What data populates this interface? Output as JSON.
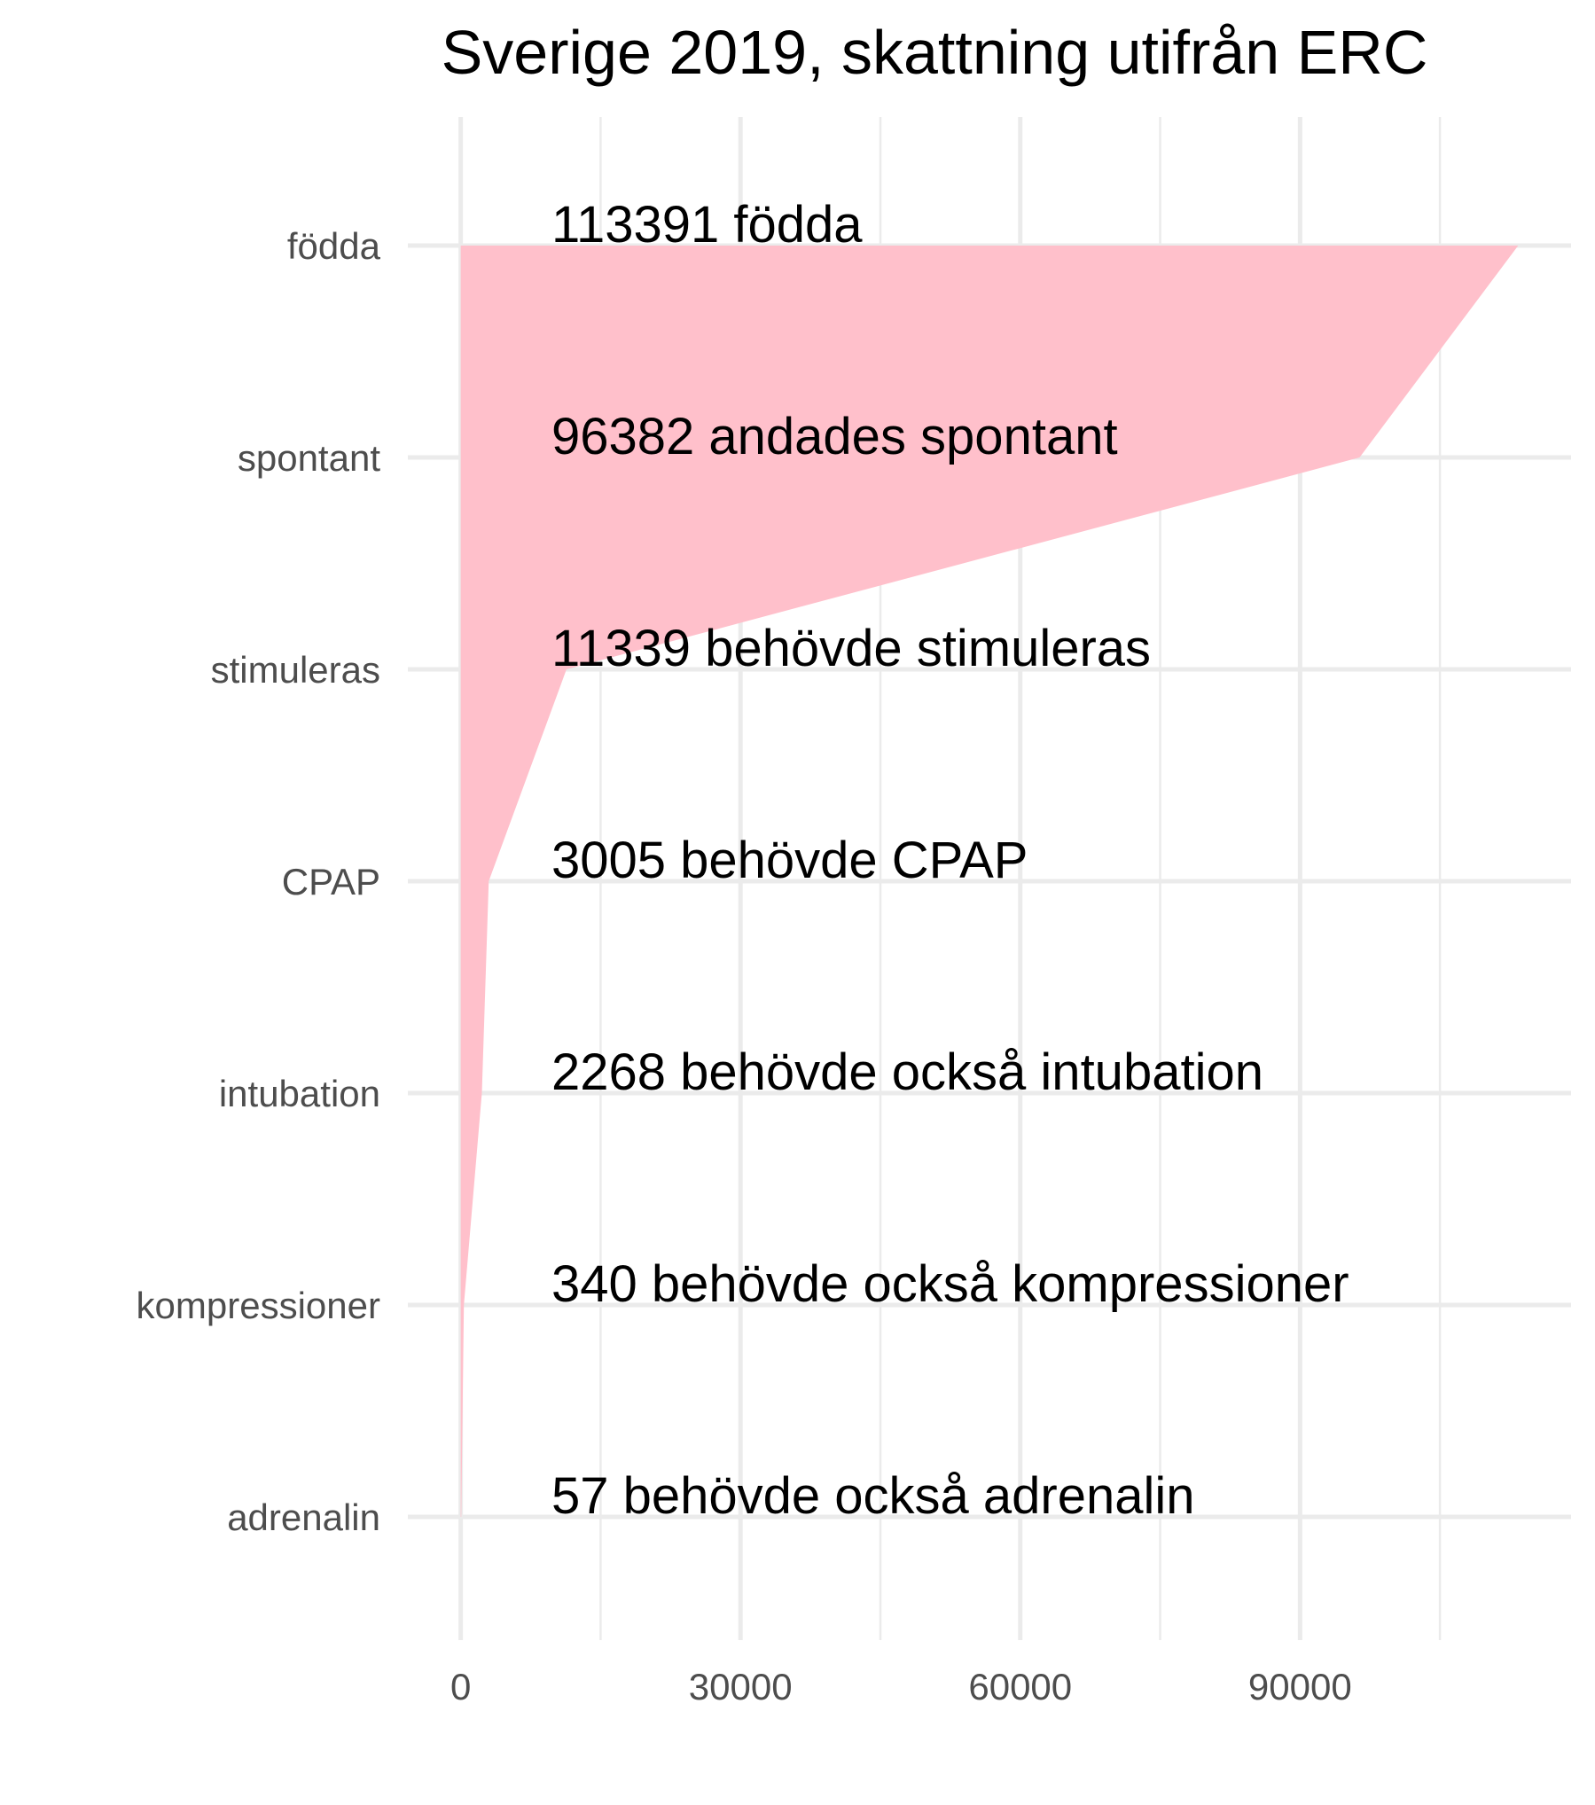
{
  "chart_data": {
    "type": "area",
    "title": "Sverige 2019, skattning utifrån ERC",
    "xlabel": "",
    "ylabel": "",
    "orientation": "horizontal",
    "categories": [
      "födda",
      "spontant",
      "stimuleras",
      "CPAP",
      "intubation",
      "kompressioner",
      "adrenalin"
    ],
    "values": [
      113391,
      96382,
      11339,
      3005,
      2268,
      340,
      57
    ],
    "labels": [
      "113391 födda",
      "96382 andades spontant",
      "11339 behövde stimuleras",
      "3005 behövde CPAP",
      "2268 behövde också intubation",
      "340 behövde också kompressioner",
      "57 behövde också adrenalin"
    ],
    "x_ticks": [
      0,
      30000,
      60000,
      90000
    ],
    "x_tick_labels": [
      "0",
      "30000",
      "60000",
      "90000"
    ],
    "x_minor_ticks": [
      15000,
      45000,
      75000,
      105000
    ],
    "xlim": [
      -5670,
      119060
    ],
    "grid": true,
    "fill_color": "#ffc0cb",
    "legend": "none"
  }
}
